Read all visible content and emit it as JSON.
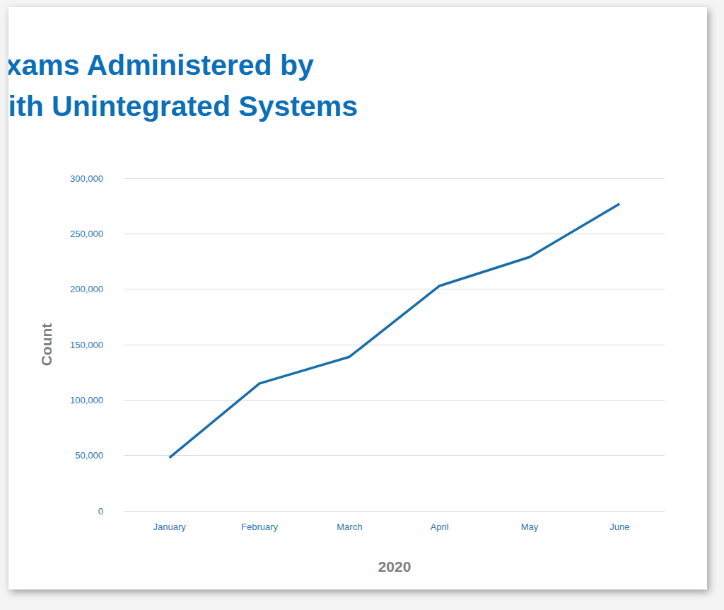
{
  "chart_data": {
    "type": "line",
    "title": "Online Exams Administered by\nProviders with Unintegrated Systems",
    "xlabel": "2020",
    "ylabel": "Count",
    "categories": [
      "January",
      "February",
      "March",
      "April",
      "May",
      "June"
    ],
    "values": [
      48000,
      115000,
      139000,
      203000,
      229000,
      277000
    ],
    "color": "#1a6ea8",
    "ylim": [
      0,
      300000
    ],
    "yticks": [
      0,
      {
        "value": 50000,
        "label": "50,000"
      },
      {
        "value": 100000,
        "label": "100,000"
      },
      {
        "value": 150000,
        "label": "150,000"
      },
      {
        "value": 200000,
        "label": "200,000"
      },
      {
        "value": 250000,
        "label": "250,000"
      },
      {
        "value": 300000,
        "label": "300,000"
      }
    ],
    "grid": true
  }
}
